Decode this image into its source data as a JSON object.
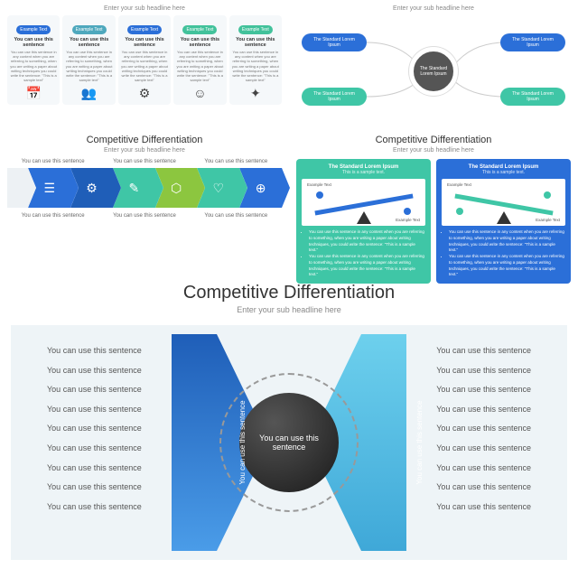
{
  "common": {
    "title": "Competitive Differentiation",
    "subtitle": "Enter your sub headline here",
    "sentence": "You can use this sentence"
  },
  "p1": {
    "badge": "Example Text",
    "cardTitle": "You can use this sentence",
    "cardBody": "You can use this sentence in any content when you are referring to something, when you are writing a paper about writing techniques you could write the sentence: \"This is a sample text\"",
    "colors": [
      "#2b6fd8",
      "#4ea8bd",
      "#2b6fd8",
      "#42c29b",
      "#42c29b"
    ],
    "icons": [
      "📅",
      "👥",
      "⚙",
      "☺",
      "✦"
    ]
  },
  "p2": {
    "center": "The Standard Lorem Ipsum",
    "node": "The Standard Lorem Ipsum",
    "colors": {
      "blue": "#2b6fd8",
      "teal": "#3fc6a6"
    }
  },
  "p3": {
    "label": "You can use this sentence",
    "colors": [
      "#2b6fd8",
      "#1f5eb8",
      "#3fc6a6",
      "#8cc63f",
      "#3fc6a6",
      "#2b6fd8"
    ],
    "icons": [
      "☰",
      "⚙",
      "✎",
      "⬡",
      "♡",
      "⊕"
    ]
  },
  "p4": {
    "boxTitle": "The Standard Lorem Ipsum",
    "boxSub": "This is a sample text.",
    "bodyLine": "You can use this sentence in any content when you are referring to something, when you are writing a paper about writing techniques, you could write the sentence: \"This is a sample text.\"",
    "stageLbl": "Example Text",
    "green": "#3fc6a6",
    "blue": "#2b6fd8"
  },
  "p5": {
    "sentence": "You can use this sentence",
    "leftLabel": "You can use this sentence",
    "rightLabel": "You can use this sentence",
    "leftGrad": [
      "#1f5eb8",
      "#2b6fd8"
    ],
    "rightGrad": [
      "#6dd0ed",
      "#3fa8d8"
    ]
  }
}
